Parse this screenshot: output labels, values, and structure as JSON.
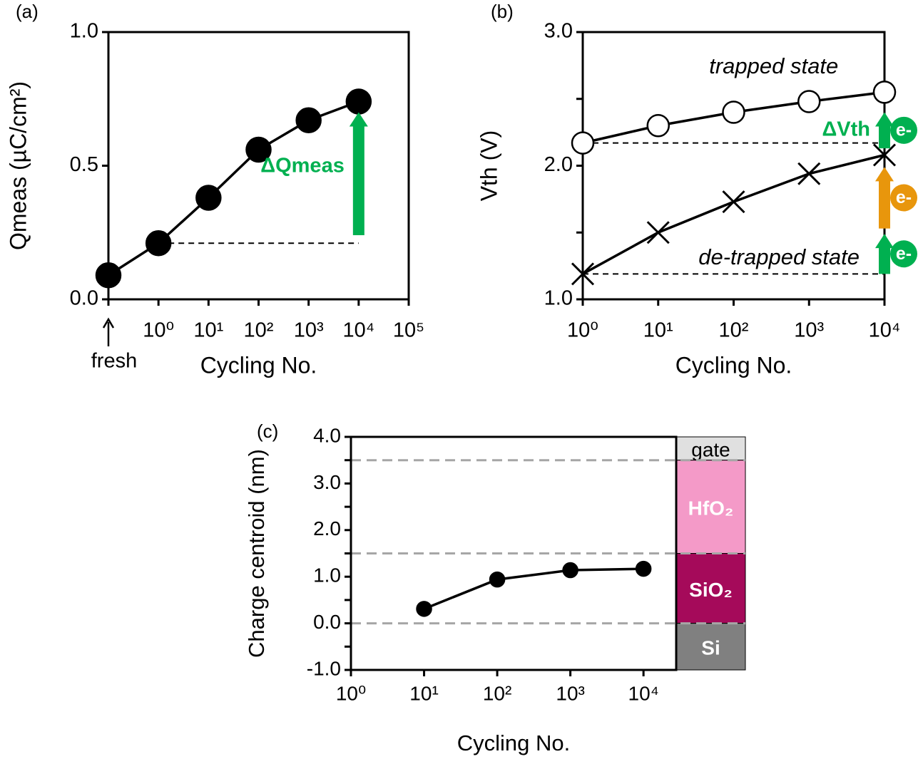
{
  "chart_data": [
    {
      "type": "line",
      "label": "(a)",
      "xlabel": "Cycling No.",
      "ylabel": "Qmeas (µC/cm²)",
      "xscale": "log",
      "xlim": [
        0.1,
        100000
      ],
      "xticks": [
        {
          "value": 1,
          "label": "10⁰"
        },
        {
          "value": 10,
          "label": "10¹"
        },
        {
          "value": 100,
          "label": "10²"
        },
        {
          "value": 1000,
          "label": "10³"
        },
        {
          "value": 10000,
          "label": "10⁴"
        },
        {
          "value": 100000,
          "label": "10⁵"
        }
      ],
      "ylim": [
        0,
        1
      ],
      "yticks": [
        {
          "value": 0,
          "label": "0.0"
        },
        {
          "value": 0.5,
          "label": "0.5"
        },
        {
          "value": 1,
          "label": "1.0"
        }
      ],
      "x": [
        0.1,
        1,
        10,
        100,
        1000,
        10000
      ],
      "series": [
        {
          "color": "#000000",
          "marker": "filled-circle",
          "values": [
            0.09,
            0.21,
            0.38,
            0.56,
            0.67,
            0.74
          ]
        }
      ],
      "annotations": [
        {
          "text": "fresh",
          "x": 0.1
        }
      ],
      "reference_lines": [
        {
          "y": 0.21,
          "x_from": 1,
          "x_to": 10000
        }
      ],
      "arrows": [
        {
          "x": 10000,
          "from": 0.24,
          "to": 0.7,
          "color": "#00b050",
          "text": "ΔQmeas"
        }
      ]
    },
    {
      "type": "line",
      "label": "(b)",
      "xlabel": "Cycling No.",
      "ylabel": "Vth (V)",
      "xscale": "log",
      "xlim": [
        1,
        10000
      ],
      "xticks": [
        {
          "value": 1,
          "label": "10⁰"
        },
        {
          "value": 10,
          "label": "10¹"
        },
        {
          "value": 100,
          "label": "10²"
        },
        {
          "value": 1000,
          "label": "10³"
        },
        {
          "value": 10000,
          "label": "10⁴"
        }
      ],
      "ylim": [
        1,
        3
      ],
      "yticks": [
        {
          "value": 1,
          "label": "1.0"
        },
        {
          "value": 2,
          "label": "2.0"
        },
        {
          "value": 3,
          "label": "3.0"
        }
      ],
      "minor_yticks": [
        1.5,
        2.5
      ],
      "x": [
        1,
        10,
        100,
        1000,
        10000
      ],
      "series": [
        {
          "name": "trapped state",
          "color": "#000000",
          "marker": "open-circle",
          "values": [
            2.17,
            2.3,
            2.4,
            2.48,
            2.55
          ]
        },
        {
          "name": "de-trapped state",
          "color": "#000000",
          "marker": "x",
          "values": [
            1.19,
            1.5,
            1.73,
            1.94,
            2.08
          ]
        }
      ],
      "reference_lines": [
        {
          "y": 2.17,
          "x_from": 1,
          "x_to": 10000
        },
        {
          "y": 1.19,
          "x_from": 1,
          "x_to": 10000
        }
      ],
      "arrows": [
        {
          "x": 10000,
          "from": 2.13,
          "to": 2.4,
          "color": "#00b050",
          "text": "ΔVth",
          "badge": "e-"
        },
        {
          "x": 10000,
          "from": 1.53,
          "to": 1.99,
          "color": "#e8960c",
          "badge": "e-"
        },
        {
          "x": 10000,
          "from": 1.19,
          "to": 1.49,
          "color": "#00b050",
          "badge": "e-"
        }
      ]
    },
    {
      "type": "line",
      "label": "(c)",
      "xlabel": "Cycling No.",
      "ylabel": "Charge centroid (nm)",
      "xscale": "log",
      "xlim": [
        1,
        28000
      ],
      "xticks": [
        {
          "value": 1,
          "label": "10⁰"
        },
        {
          "value": 10,
          "label": "10¹"
        },
        {
          "value": 100,
          "label": "10²"
        },
        {
          "value": 1000,
          "label": "10³"
        },
        {
          "value": 10000,
          "label": "10⁴"
        }
      ],
      "ylim": [
        -1,
        4
      ],
      "yticks": [
        {
          "value": -1,
          "label": "-1.0"
        },
        {
          "value": 0,
          "label": "0.0"
        },
        {
          "value": 1,
          "label": "1.0"
        },
        {
          "value": 2,
          "label": "2.0"
        },
        {
          "value": 3,
          "label": "3.0"
        },
        {
          "value": 4,
          "label": "4.0"
        }
      ],
      "minor_yticks": [
        -0.5,
        0.5,
        1.5,
        2.5,
        3.5
      ],
      "x": [
        10,
        100,
        1000,
        10000
      ],
      "series": [
        {
          "color": "#000000",
          "marker": "filled-circle",
          "values": [
            0.31,
            0.94,
            1.14,
            1.17
          ]
        }
      ],
      "reference_lines": [
        {
          "y": 0,
          "color": "#a6a6a6"
        },
        {
          "y": 1.5,
          "color": "#a6a6a6"
        },
        {
          "y": 3.5,
          "color": "#a6a6a6"
        }
      ],
      "layers": [
        {
          "name": "gate",
          "from": 3.5,
          "to": 4,
          "color": "#e0e0e0",
          "text_color": "#000000"
        },
        {
          "name": "HfO₂",
          "from": 1.5,
          "to": 3.5,
          "color": "#f49ac8",
          "text_color": "#ffffff"
        },
        {
          "name": "SiO₂",
          "from": 0,
          "to": 1.5,
          "color": "#a50a5a",
          "text_color": "#ffffff"
        },
        {
          "name": "Si",
          "from": -1,
          "to": 0,
          "color": "#808080",
          "text_color": "#ffffff"
        }
      ]
    }
  ]
}
